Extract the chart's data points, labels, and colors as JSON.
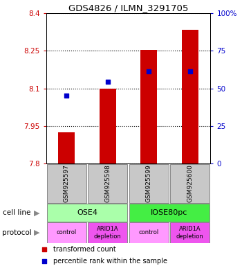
{
  "title": "GDS4826 / ILMN_3291705",
  "samples": [
    "GSM925597",
    "GSM925598",
    "GSM925599",
    "GSM925600"
  ],
  "bar_values": [
    7.925,
    8.1,
    8.255,
    8.335
  ],
  "bar_base": 7.8,
  "percentile_values": [
    8.072,
    8.126,
    8.168,
    8.168
  ],
  "ylim": [
    7.8,
    8.4
  ],
  "yticks": [
    7.8,
    7.95,
    8.1,
    8.25,
    8.4
  ],
  "ytick_labels": [
    "7.8",
    "7.95",
    "8.1",
    "8.25",
    "8.4"
  ],
  "y2ticks_pct": [
    0,
    25,
    50,
    75,
    100
  ],
  "y2tick_labels": [
    "0",
    "25",
    "50",
    "75",
    "100%"
  ],
  "bar_color": "#cc0000",
  "dot_color": "#0000cc",
  "left_tick_color": "#cc0000",
  "right_tick_color": "#0000cc",
  "cell_line_labels": [
    "OSE4",
    "IOSE80pc"
  ],
  "cell_line_spans": [
    [
      0,
      1
    ],
    [
      2,
      3
    ]
  ],
  "cell_line_color_light": "#aaffaa",
  "cell_line_color_bright": "#44ee44",
  "protocol_labels": [
    "control",
    "ARID1A\ndepletion",
    "control",
    "ARID1A\ndepletion"
  ],
  "protocol_color_light": "#ff99ff",
  "protocol_color_bright": "#ee55ee",
  "sample_box_color": "#c8c8c8",
  "cell_line_row_label": "cell line",
  "protocol_row_label": "protocol",
  "legend_items": [
    {
      "color": "#cc0000",
      "label": "transformed count"
    },
    {
      "color": "#0000cc",
      "label": "percentile rank within the sample"
    }
  ]
}
